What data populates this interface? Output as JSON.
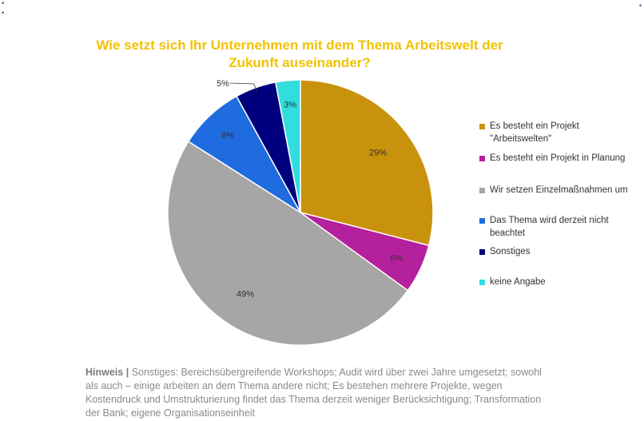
{
  "corner_marks": {
    "top_left": "•",
    "bottom_left": "•",
    "top_right": "•"
  },
  "chart_data": {
    "type": "pie",
    "title": "Wie setzt sich Ihr Unternehmen mit dem Thema Arbeitswelt der Zukunft auseinander?",
    "slices": [
      {
        "label": "Es besteht ein Projekt \"Arbeitswelten\"",
        "value": 29,
        "display": "29%",
        "color": "#C9920C"
      },
      {
        "label": "Es besteht ein Projekt in Planung",
        "value": 6,
        "display": "6%",
        "color": "#B5209D"
      },
      {
        "label": "Wir setzen Einzelmaßnahmen um",
        "value": 49,
        "display": "49%",
        "color": "#A6A6A6"
      },
      {
        "label": "Das Thema wird derzeit nicht beachtet",
        "value": 8,
        "display": "8%",
        "color": "#1F6BE0"
      },
      {
        "label": "Sonstiges",
        "value": 5,
        "display": "5%",
        "color": "#00007F"
      },
      {
        "label": "keine Angabe",
        "value": 3,
        "display": "3%",
        "color": "#33DDDD"
      }
    ],
    "legend_position": "right"
  },
  "legend_labels": [
    "Es besteht ein Projekt\n\"Arbeitswelten\"",
    "Es besteht ein Projekt in Planung",
    "Wir setzen Einzelmaßnahmen um",
    "Das Thema wird derzeit nicht\nbeachtet",
    "Sonstiges",
    "keine Angabe"
  ],
  "note": {
    "label": "Hinweis |",
    "text": " Sonstiges: Bereichsübergreifende Workshops;  Audit wird über zwei Jahre umgesetzt; sowohl als auch – einige arbeiten an dem Thema andere nicht; Es bestehen mehrere Projekte, wegen Kostendruck und Umstrukturierung findet das Thema derzeit weniger Berücksichtigung; Transformation der Bank; eigene Organisationseinheit"
  }
}
